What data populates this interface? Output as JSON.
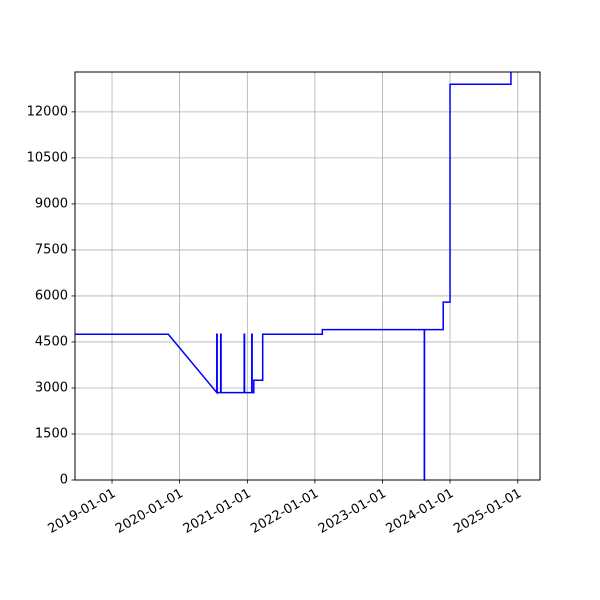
{
  "chart_data": {
    "type": "line",
    "title": "",
    "xlabel": "",
    "ylabel": "",
    "xlim": [
      "2018-06-15",
      "2025-05-01"
    ],
    "ylim": [
      0,
      13300
    ],
    "grid": true,
    "line_color": "#0000ff",
    "grid_color": "#b0b0b0",
    "x_ticks": [
      "2019-01-01",
      "2020-01-01",
      "2021-01-01",
      "2022-01-01",
      "2023-01-01",
      "2024-01-01",
      "2025-01-01"
    ],
    "y_ticks": [
      "0",
      "1500",
      "3000",
      "4500",
      "6000",
      "7500",
      "9000",
      "10500",
      "12000"
    ],
    "series": [
      {
        "points": [
          [
            "2018-06-15",
            4750
          ],
          [
            "2019-11-01",
            4750
          ],
          [
            "2020-07-20",
            2850
          ],
          [
            "2020-07-20",
            4750
          ],
          [
            "2020-07-22",
            4750
          ],
          [
            "2020-07-22",
            2850
          ],
          [
            "2020-08-10",
            2850
          ],
          [
            "2020-08-10",
            4750
          ],
          [
            "2020-08-12",
            4750
          ],
          [
            "2020-08-12",
            2850
          ],
          [
            "2020-12-15",
            2850
          ],
          [
            "2020-12-15",
            4750
          ],
          [
            "2020-12-17",
            4750
          ],
          [
            "2020-12-17",
            2850
          ],
          [
            "2021-01-25",
            2850
          ],
          [
            "2021-01-25",
            4750
          ],
          [
            "2021-01-27",
            4750
          ],
          [
            "2021-01-27",
            2850
          ],
          [
            "2021-02-05",
            2850
          ],
          [
            "2021-02-05",
            3250
          ],
          [
            "2021-03-25",
            3250
          ],
          [
            "2021-03-25",
            4750
          ],
          [
            "2022-02-10",
            4750
          ],
          [
            "2022-02-10",
            4900
          ],
          [
            "2023-08-15",
            4900
          ],
          [
            "2023-08-15",
            0
          ],
          [
            "2023-08-16",
            0
          ],
          [
            "2023-08-16",
            4900
          ],
          [
            "2023-11-25",
            4900
          ],
          [
            "2023-11-25",
            5800
          ],
          [
            "2024-01-01",
            5800
          ],
          [
            "2024-01-01",
            12900
          ],
          [
            "2024-11-25",
            12900
          ],
          [
            "2024-11-25",
            13300
          ]
        ]
      }
    ]
  }
}
